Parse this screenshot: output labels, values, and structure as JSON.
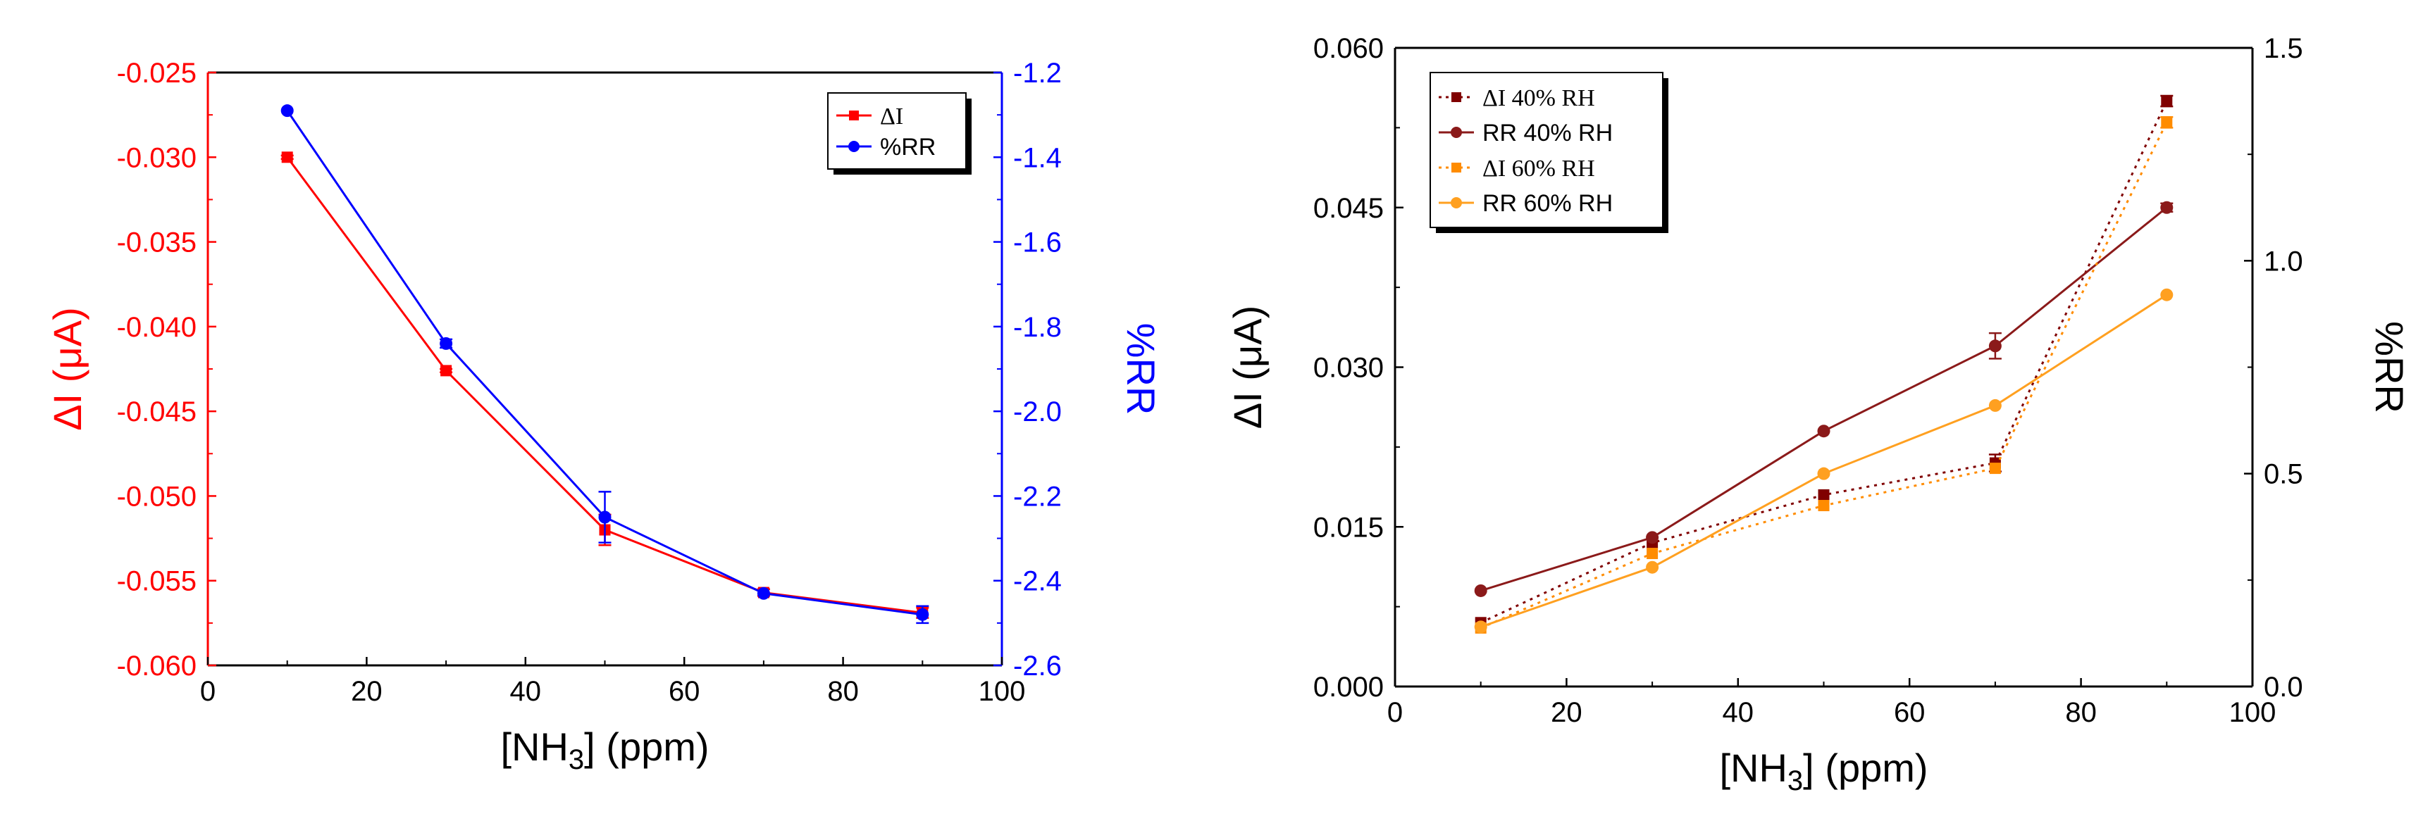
{
  "chart_data": [
    {
      "type": "line",
      "x": [
        10,
        30,
        50,
        70,
        90
      ],
      "xlabel": "[NH3] (ppm)",
      "xlim": [
        0,
        100
      ],
      "xticks": [
        "0",
        "20",
        "40",
        "60",
        "80",
        "100"
      ],
      "ylabel_left": "ΔI (μA)",
      "ylim_left": [
        -0.06,
        -0.025
      ],
      "yticks_left": [
        "-0.060",
        "-0.055",
        "-0.050",
        "-0.045",
        "-0.040",
        "-0.035",
        "-0.030",
        "-0.025"
      ],
      "ylabel_right": "%RR",
      "ylim_right": [
        -2.6,
        -1.2
      ],
      "yticks_right": [
        "-2.6",
        "-2.4",
        "-2.2",
        "-2.0",
        "-1.8",
        "-1.6",
        "-1.4",
        "-1.2"
      ],
      "legend": [
        "ΔI",
        "%RR"
      ],
      "legend_position": "top-right",
      "series": [
        {
          "name": "ΔI",
          "axis": "left",
          "color": "#ff0000",
          "marker": "square",
          "style": "solid",
          "values": [
            -0.03,
            -0.0426,
            -0.052,
            -0.0557,
            -0.0569
          ],
          "errors": [
            0.0001,
            0.0001,
            0.0009,
            0.0002,
            0.0003
          ]
        },
        {
          "name": "%RR",
          "axis": "right",
          "color": "#0000ff",
          "marker": "circle",
          "style": "solid",
          "values": [
            -1.29,
            -1.84,
            -2.25,
            -2.43,
            -2.48
          ],
          "errors": [
            0.0,
            0.01,
            0.06,
            0.0,
            0.02
          ]
        }
      ]
    },
    {
      "type": "line",
      "x": [
        10,
        30,
        50,
        70,
        90
      ],
      "xlabel": "[NH3] (ppm)",
      "xlim": [
        0,
        100
      ],
      "xticks": [
        "0",
        "20",
        "40",
        "60",
        "80",
        "100"
      ],
      "ylabel_left": "ΔI (μA)",
      "ylim_left": [
        0.0,
        0.06
      ],
      "yticks_left": [
        "0.000",
        "0.015",
        "0.030",
        "0.045",
        "0.060"
      ],
      "ylabel_right": "%RR",
      "ylim_right": [
        0.0,
        1.5
      ],
      "yticks_right": [
        "0.0",
        "0.5",
        "1.0",
        "1.5"
      ],
      "legend": [
        "ΔI 40% RH",
        "RR 40% RH",
        "ΔI 60% RH",
        "RR 60% RH"
      ],
      "legend_position": "top-left",
      "series": [
        {
          "name": "ΔI 40% RH",
          "axis": "left",
          "color": "#800000",
          "marker": "square",
          "style": "dotted",
          "values": [
            0.006,
            0.0135,
            0.018,
            0.021,
            0.055
          ],
          "errors": [
            0.0,
            0.0,
            0.0,
            0.0008,
            0.0005
          ]
        },
        {
          "name": "RR 40% RH",
          "axis": "right",
          "color": "#8b1a1a",
          "marker": "circle",
          "style": "solid",
          "values": [
            0.225,
            0.35,
            0.6,
            0.8,
            1.125
          ],
          "errors": [
            0.0,
            0.0,
            0.0,
            0.03,
            0.01
          ]
        },
        {
          "name": "ΔI 60% RH",
          "axis": "left",
          "color": "#ff8c00",
          "marker": "square",
          "style": "dotted",
          "values": [
            0.0055,
            0.0125,
            0.017,
            0.0205,
            0.053
          ],
          "errors": [
            0.0,
            0.0,
            0.0,
            0.0,
            0.0005
          ]
        },
        {
          "name": "RR 60% RH",
          "axis": "right",
          "color": "#ffa020",
          "marker": "circle",
          "style": "solid",
          "values": [
            0.14,
            0.28,
            0.5,
            0.66,
            0.92
          ],
          "errors": [
            0.0,
            0.0,
            0.0,
            0.0,
            0.0
          ]
        }
      ]
    }
  ]
}
